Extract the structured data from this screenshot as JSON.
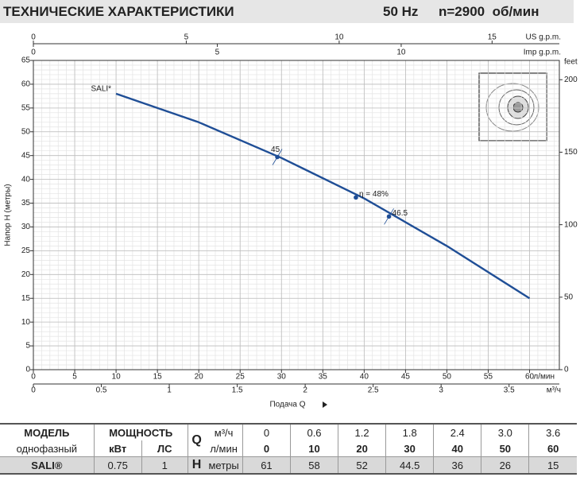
{
  "header": {
    "title": "ТЕХНИЧЕСКИЕ ХАРАКТЕРИСТИКИ",
    "frequency": "50 Hz",
    "speed": "n=2900  об/мин"
  },
  "chart_data": {
    "type": "line",
    "y_label": "Напор H (метры)",
    "x_label": "Подача Q",
    "x_unit": "л/мин",
    "y2_label": "feet",
    "xlim": [
      0,
      63.6
    ],
    "xticks": [
      0,
      5,
      10,
      15,
      20,
      25,
      30,
      35,
      40,
      45,
      50,
      55,
      60
    ],
    "ylim": [
      0,
      65
    ],
    "yticks": [
      0,
      5,
      10,
      15,
      20,
      25,
      30,
      35,
      40,
      45,
      50,
      55,
      60,
      65
    ],
    "y2lim": [
      0,
      213.3
    ],
    "y2ticks": [
      0,
      50,
      100,
      150,
      200
    ],
    "grid": true,
    "minor_grid": true,
    "extra_x_axes": [
      {
        "label": "US g.p.m.",
        "lim": [
          0,
          17.2
        ],
        "ticks": [
          0,
          5,
          10,
          15
        ]
      },
      {
        "label": "Imp g.p.m.",
        "lim": [
          0,
          14.3
        ],
        "ticks": [
          0,
          5,
          10
        ]
      },
      {
        "label": "м³/ч",
        "lim": [
          0,
          3.87
        ],
        "ticks": [
          0,
          0.5,
          1,
          1.5,
          2,
          2.5,
          3,
          3.5
        ]
      }
    ],
    "series": [
      {
        "name": "SALI*",
        "color": "#1f4e96",
        "x": [
          10,
          20,
          30,
          40,
          50,
          60
        ],
        "values": [
          58,
          52,
          44.5,
          36,
          26,
          15
        ]
      }
    ],
    "efficiency_points": [
      {
        "x": 29.5,
        "y": 44.7,
        "label": "45"
      },
      {
        "x": 39,
        "y": 36.2,
        "label": "η = 48%"
      },
      {
        "x": 43,
        "y": 32.2,
        "label": "46.5"
      }
    ]
  },
  "table": {
    "rows": [
      [
        "МОДЕЛЬ",
        "МОЩНОСТЬ",
        "Q",
        "м³/ч",
        "0",
        "0.6",
        "1.2",
        "1.8",
        "2.4",
        "3.0",
        "3.6"
      ],
      [
        "однофазный",
        "кВт",
        "ЛС",
        "л/мин",
        "0",
        "10",
        "20",
        "30",
        "40",
        "50",
        "60"
      ],
      [
        "SALI®",
        "0.75",
        "1",
        "H",
        "метры",
        "61",
        "58",
        "52",
        "44.5",
        "36",
        "26",
        "15"
      ]
    ]
  }
}
